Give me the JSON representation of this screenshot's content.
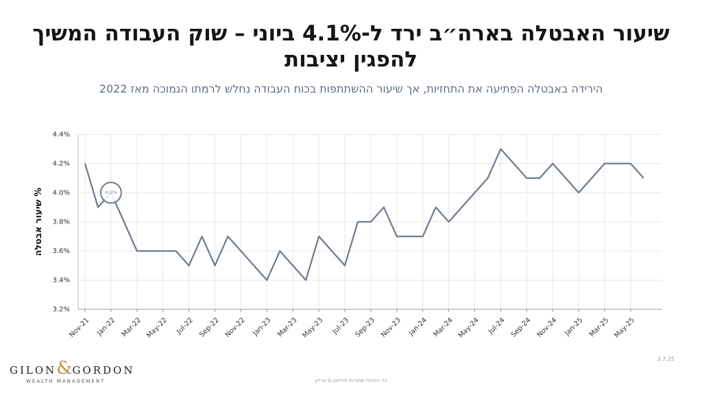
{
  "chart_data": {
    "type": "line",
    "title": "שיעור האבטלה בארה״ב ירד ל-4.1% ביוני – שוק העבודה המשיך להפגין יציבות",
    "subtitle": "הירידה באבטלה הפתיעה את התחזיות, אך שיעור ההשתתפות בכוח העבודה נחלש לרמתו הנמוכה מאז 2022",
    "y_label": "% שיעור אבטלה",
    "categories": [
      "Nov-21",
      null,
      "Jan-22",
      null,
      "Mar-22",
      null,
      "May-22",
      null,
      "Jul-22",
      null,
      "Sep-22",
      null,
      "Nov-22",
      null,
      "Jan-23",
      null,
      "Mar-23",
      null,
      "May-23",
      null,
      "Jul-23",
      null,
      "Sep-23",
      null,
      "Nov-23",
      null,
      "Jan-24",
      null,
      "Mar-24",
      null,
      "May-24",
      null,
      "Jul-24",
      null,
      "Sep-24",
      null,
      "Nov-24",
      null,
      "Jan-25",
      null,
      "Mar-25",
      null,
      "May-25",
      null
    ],
    "series": [
      {
        "color": "#6b7a8b",
        "values": [
          4.2,
          3.9,
          4.0,
          3.8,
          3.6,
          3.6,
          3.6,
          3.6,
          3.5,
          3.7,
          3.5,
          3.7,
          3.6,
          3.5,
          3.4,
          3.6,
          3.5,
          3.4,
          3.7,
          3.6,
          3.5,
          3.8,
          3.8,
          3.9,
          3.7,
          3.7,
          3.7,
          3.9,
          3.8,
          3.9,
          4.0,
          4.1,
          4.3,
          4.2,
          4.1,
          4.1,
          4.2,
          4.1,
          4.0,
          4.1,
          4.2,
          4.2,
          4.2,
          4.1
        ],
        "value_labels": [
          null,
          null,
          "4.0%",
          null,
          null,
          null,
          null,
          null,
          null,
          null,
          null,
          null,
          null,
          null,
          null,
          null,
          null,
          null,
          null,
          null,
          null,
          null,
          null,
          null,
          null,
          null,
          null,
          null,
          null,
          null,
          null,
          null,
          null,
          null,
          null,
          null,
          null,
          null,
          null,
          null,
          null,
          null,
          null,
          null
        ]
      }
    ],
    "ylim": [
      3.2,
      4.4
    ],
    "yticks": [
      {
        "value": 3.2,
        "label": "3.2%"
      },
      {
        "value": 3.4,
        "label": "3.4%"
      },
      {
        "value": 3.6,
        "label": "3.6%"
      },
      {
        "value": 3.8,
        "label": "3.8%"
      },
      {
        "value": 4.0,
        "label": "4.0%"
      },
      {
        "value": 4.2,
        "label": "4.2%"
      },
      {
        "value": 4.4,
        "label": "4.4%"
      }
    ],
    "grid": true
  },
  "branding": {
    "logo": [
      "GILON",
      "&",
      "GORDON"
    ],
    "tagline": "WEALTH MANAGEMENT",
    "date": "3.7.25",
    "footer": "כל הזכויות שמורות לגילאון & גורדון"
  }
}
